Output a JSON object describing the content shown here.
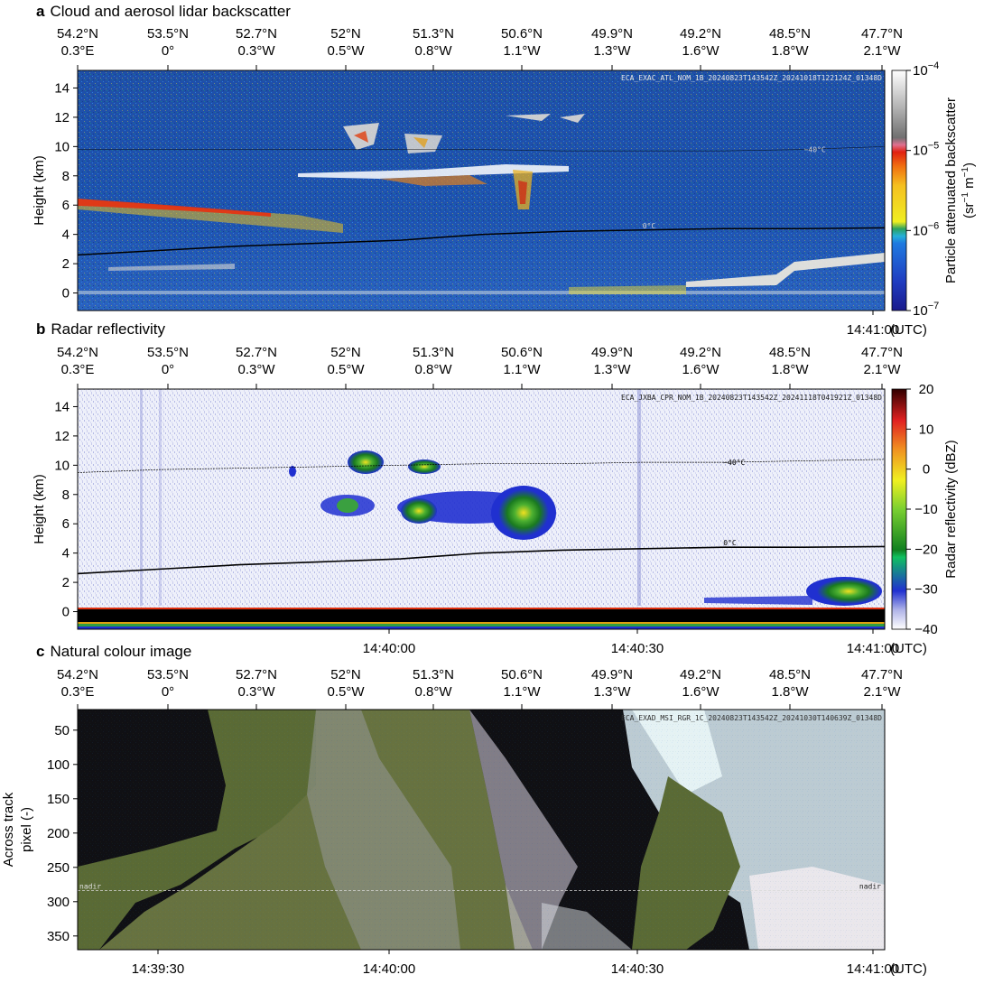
{
  "time_unit": "(UTC)",
  "geo_ticks": [
    {
      "lat": "54.2°N",
      "lon": "0.3°E"
    },
    {
      "lat": "53.5°N",
      "lon": "0°"
    },
    {
      "lat": "52.7°N",
      "lon": "0.3°W"
    },
    {
      "lat": "52°N",
      "lon": "0.5°W"
    },
    {
      "lat": "51.3°N",
      "lon": "0.8°W"
    },
    {
      "lat": "50.6°N",
      "lon": "1.1°W"
    },
    {
      "lat": "49.9°N",
      "lon": "1.3°W"
    },
    {
      "lat": "49.2°N",
      "lon": "1.6°W"
    },
    {
      "lat": "48.5°N",
      "lon": "1.8°W"
    },
    {
      "lat": "47.7°N",
      "lon": "2.1°W"
    }
  ],
  "colors": {
    "lidar_background": "#1f4fa8",
    "radar_background": "#eef0fa",
    "image_land": "#5a6a35",
    "image_sea": "#101014",
    "image_cloud": "#d8eef2"
  },
  "chart_data": [
    {
      "type": "heatmap",
      "panel_letter": "a",
      "title": "Cloud and aerosol lidar backscatter",
      "ylabel": "Height (km)",
      "ylim": [
        -1.2,
        15.2
      ],
      "yticks": [
        "0",
        "2",
        "4",
        "6",
        "8",
        "10",
        "12",
        "14"
      ],
      "ytick_values": [
        0,
        2,
        4,
        6,
        8,
        10,
        12,
        14
      ],
      "xtick_labels": [
        "14:41:00"
      ],
      "product_id": "ECA_EXAC_ATL_NOM_1B_20240823T143542Z_20241018T122124Z_01348D",
      "colorbar": {
        "label_line1": "Particle attenuated backscatter",
        "label_line2_text": "(sr",
        "label_sup1": "−1",
        "label_mid": " m",
        "label_sup2": "−1",
        "label_end": ")",
        "scale": "log",
        "range": [
          1e-07,
          0.0001
        ],
        "tick_bases": [
          "10",
          "10",
          "10",
          "10"
        ],
        "tick_exponents": [
          "−7",
          "−6",
          "−5",
          "−4"
        ]
      },
      "isotherm_labels": [
        "−40°C",
        "0°C"
      ],
      "zero_isotherm_km": [
        2.6,
        2.9,
        3.2,
        3.4,
        3.6,
        4.0,
        4.2,
        4.3,
        4.4,
        4.4,
        4.45
      ],
      "minus40_isotherm_km": [
        9.8,
        9.8,
        9.8,
        9.8,
        9.8,
        9.8,
        9.7,
        9.7,
        9.7,
        9.8,
        10.0
      ]
    },
    {
      "type": "heatmap",
      "panel_letter": "b",
      "title": "Radar reflectivity",
      "ylabel": "Height (km)",
      "ylim": [
        -1.2,
        15.2
      ],
      "yticks": [
        "0",
        "2",
        "4",
        "6",
        "8",
        "10",
        "12",
        "14"
      ],
      "ytick_values": [
        0,
        2,
        4,
        6,
        8,
        10,
        12,
        14
      ],
      "xtick_labels": [
        "14:40:00",
        "14:40:30",
        "14:41:00"
      ],
      "product_id": "ECA_JXBA_CPR_NOM_1B_20240823T143542Z_20241118T041921Z_01348D",
      "colorbar": {
        "label": "Radar reflectivity (dBZ)",
        "range": [
          -40,
          20
        ],
        "ticks": [
          "20",
          "10",
          "0",
          "−10",
          "−20",
          "−30",
          "−40"
        ]
      },
      "isotherm_labels": [
        "−40°C",
        "0°C"
      ],
      "zero_isotherm_km": [
        2.6,
        2.9,
        3.2,
        3.4,
        3.6,
        4.0,
        4.2,
        4.3,
        4.4,
        4.4,
        4.45
      ],
      "minus40_isotherm_km": [
        9.5,
        9.7,
        9.8,
        9.9,
        10.0,
        10.1,
        10.1,
        10.2,
        10.2,
        10.3,
        10.4
      ]
    },
    {
      "type": "heatmap",
      "panel_letter": "c",
      "title": "Natural colour image",
      "ylabel_line1": "Across track",
      "ylabel_line2": "pixel (-)",
      "ylim": [
        20,
        370
      ],
      "yticks": [
        "50",
        "100",
        "150",
        "200",
        "250",
        "300",
        "350"
      ],
      "ytick_values": [
        50,
        100,
        150,
        200,
        250,
        300,
        350
      ],
      "xtick_labels": [
        "14:39:30",
        "14:40:00",
        "14:40:30",
        "14:41:00"
      ],
      "product_id": "ECA_EXAD_MSI_RGR_1C_20240823T143542Z_20241030T140639Z_01348D",
      "nadir_label": "nadir",
      "nadir_pixel": 284
    }
  ]
}
